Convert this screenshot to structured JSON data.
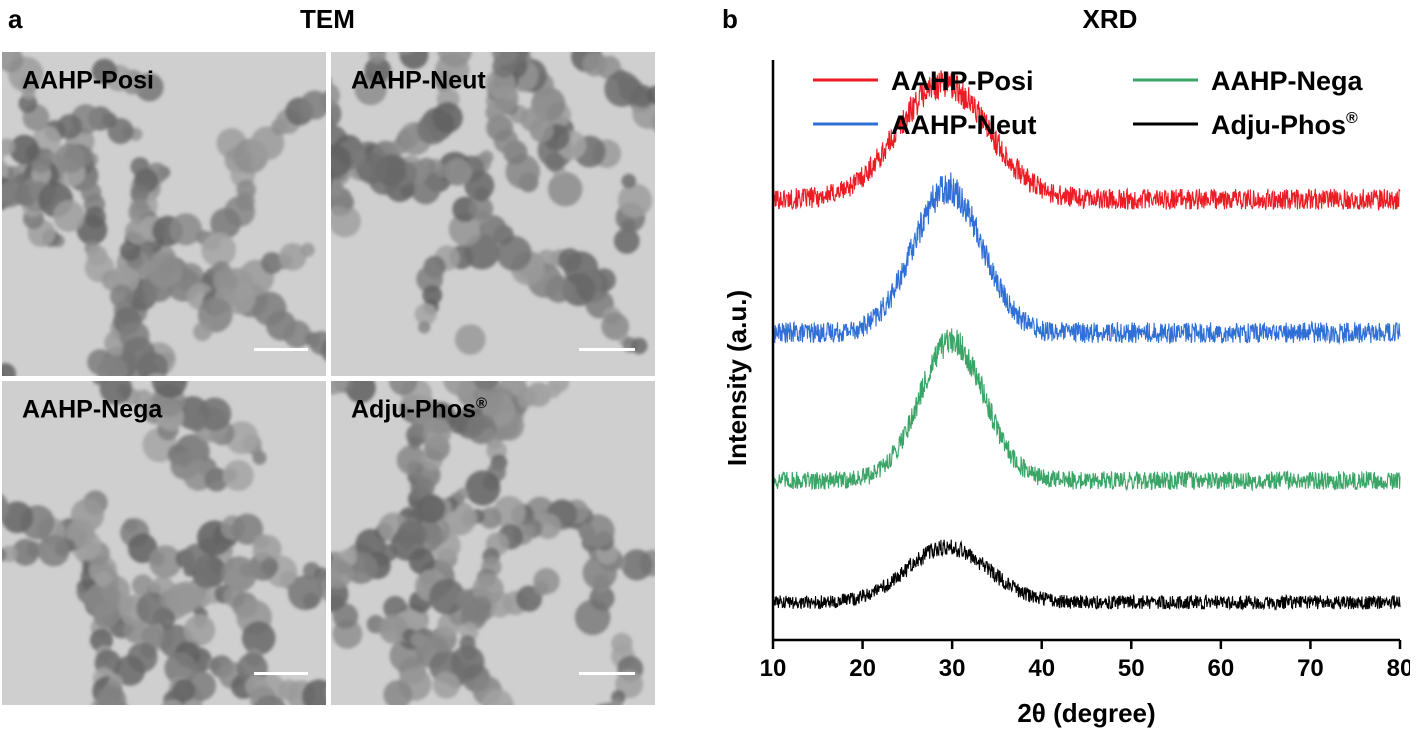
{
  "panel_a": {
    "letter": "a",
    "title": "TEM",
    "images": [
      {
        "label": "AAHP-Posi",
        "sup": ""
      },
      {
        "label": "AAHP-Neut",
        "sup": ""
      },
      {
        "label": "AAHP-Nega",
        "sup": ""
      },
      {
        "label": "Adju-Phos",
        "sup": "®"
      }
    ]
  },
  "panel_b": {
    "letter": "b",
    "title": "XRD"
  },
  "colors": {
    "AAHP-Posi": "#ec1c24",
    "AAHP-Neut": "#2f6fd6",
    "AAHP-Nega": "#3aa567",
    "Adju-Phos": "#000000"
  },
  "chart_data": {
    "type": "line",
    "title": "XRD",
    "xlabel": "2θ (degree)",
    "ylabel": "Intensity (a.u.)",
    "xlim": [
      10,
      80
    ],
    "xticks": [
      10,
      20,
      30,
      40,
      50,
      60,
      70,
      80
    ],
    "y_ticks_shown": false,
    "legend_position": "top",
    "legend_entries": [
      {
        "name": "AAHP-Posi",
        "sup": "",
        "color": "#ec1c24"
      },
      {
        "name": "AAHP-Nega",
        "sup": "",
        "color": "#3aa567"
      },
      {
        "name": "AAHP-Neut",
        "sup": "",
        "color": "#2f6fd6"
      },
      {
        "name": "Adju-Phos",
        "sup": "®",
        "color": "#000000"
      }
    ],
    "series": [
      {
        "name": "AAHP-Posi",
        "color": "#ec1c24",
        "peak_2theta": 29,
        "peak_width": 5.0,
        "baseline": 0.76,
        "peak_height": 0.2,
        "noise": 0.018
      },
      {
        "name": "AAHP-Neut",
        "color": "#2f6fd6",
        "peak_2theta": 29.5,
        "peak_width": 3.8,
        "baseline": 0.53,
        "peak_height": 0.25,
        "noise": 0.018
      },
      {
        "name": "AAHP-Nega",
        "color": "#3aa567",
        "peak_2theta": 30,
        "peak_width": 3.6,
        "baseline": 0.275,
        "peak_height": 0.24,
        "noise": 0.016
      },
      {
        "name": "Adju-Phos",
        "color": "#000000",
        "peak_2theta": 29.5,
        "peak_width": 4.5,
        "baseline": 0.065,
        "peak_height": 0.095,
        "noise": 0.012
      }
    ]
  }
}
